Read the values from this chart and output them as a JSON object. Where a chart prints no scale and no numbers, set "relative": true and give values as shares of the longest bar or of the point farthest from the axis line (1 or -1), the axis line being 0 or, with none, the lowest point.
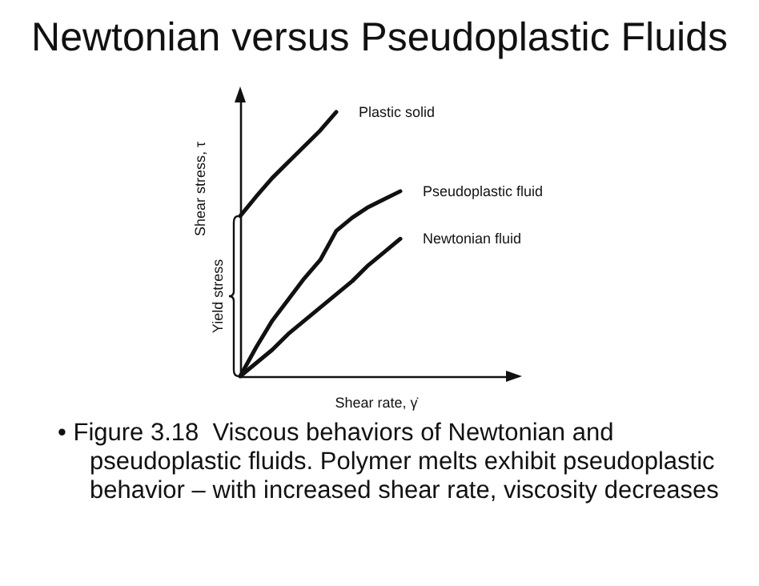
{
  "chart_data": {
    "type": "line",
    "title": "Newtonian versus Pseudoplastic Fluids",
    "xlabel": "Shear rate, γ̇",
    "ylabel": "Shear stress, τ",
    "relative": true,
    "legend": false,
    "marker": "none",
    "line_style": "solid",
    "grid": false,
    "categories": [
      null,
      null,
      null,
      null,
      null,
      null,
      null,
      null,
      null,
      null,
      null,
      null,
      null,
      null,
      null,
      null,
      null,
      null
    ],
    "series": [
      {
        "name": "Plastic solid",
        "color": "#111111",
        "values": [
          0.606,
          0.68,
          0.75,
          0.81,
          0.87,
          0.93,
          1,
          null,
          null,
          null,
          null,
          null,
          null,
          null,
          null,
          null,
          null,
          null
        ]
      },
      {
        "name": "Pseudoplastic fluid",
        "color": "#111111",
        "values": [
          0,
          0.11,
          0.21,
          0.29,
          0.37,
          0.44,
          0.55,
          0.6,
          0.64,
          0.67,
          0.7,
          null,
          null,
          null,
          null,
          null,
          null,
          null
        ]
      },
      {
        "name": "Newtonian fluid",
        "color": "#111111",
        "values": [
          0,
          0.05,
          0.1,
          0.16,
          0.21,
          0.26,
          0.31,
          0.36,
          0.42,
          0.47,
          0.52,
          null,
          null,
          null,
          null,
          null,
          null,
          null
        ]
      }
    ],
    "annotations": [
      "Yield stress",
      "• Figure 3.18  Viscous behaviors of Newtonian and pseudoplastic fluids. Polymer melts exhibit pseudoplastic behavior – with increased shear rate, viscosity decreases"
    ]
  }
}
